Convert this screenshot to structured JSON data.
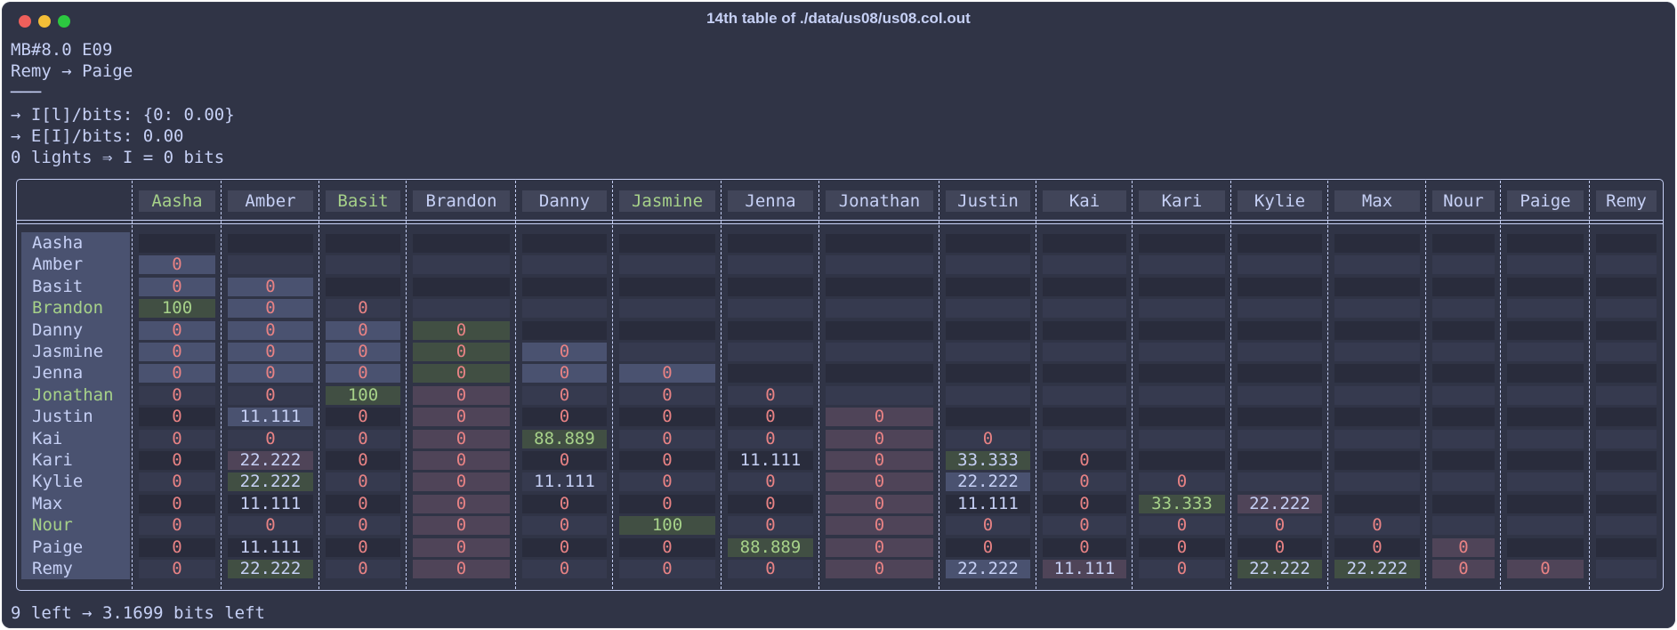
{
  "window": {
    "title": "14th table of ./data/us08/us08.col.out"
  },
  "terminal": {
    "lines": [
      "MB#8.0 E09",
      "Remy → Paige",
      "───",
      "→ I[l]/bits: {0: 0.00}",
      "→ E[I]/bits: 0.00",
      "0 lights ⇒ I = 0 bits"
    ],
    "footer": "9 left → 3.1699 bits left"
  },
  "colors": {
    "background": "#303446",
    "text": "#c6d0f5",
    "zero": "#e78284",
    "green_text": "#a6d189",
    "blue_cell": "#4a5270",
    "green_cell": "#414f43",
    "mauve_cell": "#4f4458",
    "dark_cell": "#292c3c",
    "stripe_cell": "#363a4f"
  },
  "table": {
    "columns": [
      "Aasha",
      "Amber",
      "Basit",
      "Brandon",
      "Danny",
      "Jasmine",
      "Jenna",
      "Jonathan",
      "Justin",
      "Kai",
      "Kari",
      "Kylie",
      "Max",
      "Nour",
      "Paige",
      "Remy"
    ],
    "column_highlight": [
      true,
      false,
      true,
      false,
      false,
      true,
      false,
      false,
      false,
      false,
      false,
      false,
      false,
      false,
      false,
      false
    ],
    "rows": [
      {
        "name": "Aasha",
        "highlight": false,
        "values": []
      },
      {
        "name": "Amber",
        "highlight": false,
        "values": [
          "0"
        ]
      },
      {
        "name": "Basit",
        "highlight": false,
        "values": [
          "0",
          "0"
        ]
      },
      {
        "name": "Brandon",
        "highlight": true,
        "values": [
          "100",
          "0",
          "0"
        ]
      },
      {
        "name": "Danny",
        "highlight": false,
        "values": [
          "0",
          "0",
          "0",
          "0"
        ]
      },
      {
        "name": "Jasmine",
        "highlight": false,
        "values": [
          "0",
          "0",
          "0",
          "0",
          "0"
        ]
      },
      {
        "name": "Jenna",
        "highlight": false,
        "values": [
          "0",
          "0",
          "0",
          "0",
          "0",
          "0"
        ]
      },
      {
        "name": "Jonathan",
        "highlight": true,
        "values": [
          "0",
          "0",
          "100",
          "0",
          "0",
          "0",
          "0"
        ]
      },
      {
        "name": "Justin",
        "highlight": false,
        "values": [
          "0",
          "11.111",
          "0",
          "0",
          "0",
          "0",
          "0",
          "0"
        ]
      },
      {
        "name": "Kai",
        "highlight": false,
        "values": [
          "0",
          "0",
          "0",
          "0",
          "88.889",
          "0",
          "0",
          "0",
          "0"
        ]
      },
      {
        "name": "Kari",
        "highlight": false,
        "values": [
          "0",
          "22.222",
          "0",
          "0",
          "0",
          "0",
          "11.111",
          "0",
          "33.333",
          "0"
        ]
      },
      {
        "name": "Kylie",
        "highlight": false,
        "values": [
          "0",
          "22.222",
          "0",
          "0",
          "11.111",
          "0",
          "0",
          "0",
          "22.222",
          "0",
          "0"
        ]
      },
      {
        "name": "Max",
        "highlight": false,
        "values": [
          "0",
          "11.111",
          "0",
          "0",
          "0",
          "0",
          "0",
          "0",
          "11.111",
          "0",
          "33.333",
          "22.222"
        ]
      },
      {
        "name": "Nour",
        "highlight": true,
        "values": [
          "0",
          "0",
          "0",
          "0",
          "0",
          "100",
          "0",
          "0",
          "0",
          "0",
          "0",
          "0",
          "0"
        ]
      },
      {
        "name": "Paige",
        "highlight": false,
        "values": [
          "0",
          "11.111",
          "0",
          "0",
          "0",
          "0",
          "88.889",
          "0",
          "0",
          "0",
          "0",
          "0",
          "0",
          "0"
        ]
      },
      {
        "name": "Remy",
        "highlight": false,
        "values": [
          "0",
          "22.222",
          "0",
          "0",
          "0",
          "0",
          "0",
          "0",
          "22.222",
          "11.111",
          "0",
          "22.222",
          "22.222",
          "0",
          "0"
        ]
      }
    ]
  }
}
